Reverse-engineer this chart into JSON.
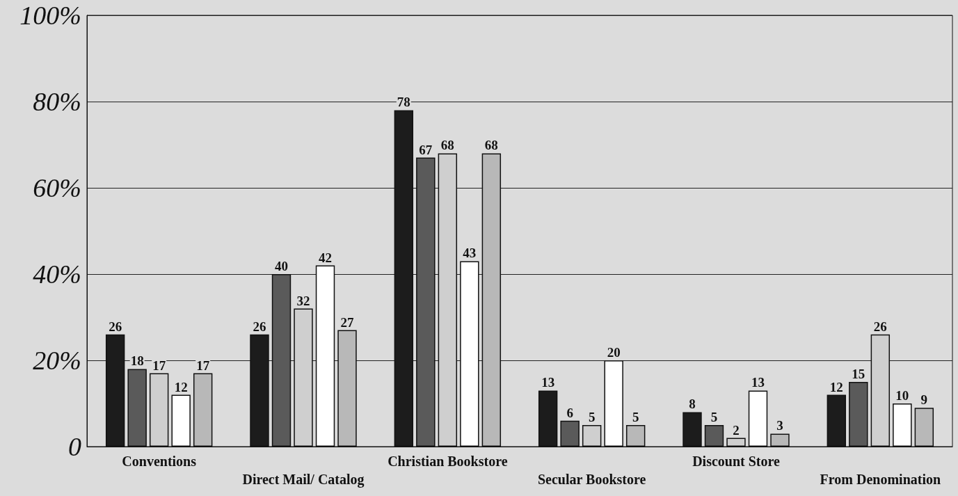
{
  "chart_data": {
    "type": "bar",
    "categories": [
      "Conventions",
      "Direct Mail/ Catalog",
      "Christian Bookstore",
      "Secular Bookstore",
      "Discount Store",
      "From Denomination"
    ],
    "series": [
      {
        "color": "#1c1c1c",
        "values": [
          26,
          26,
          78,
          13,
          8,
          12
        ]
      },
      {
        "color": "#5a5a5a",
        "values": [
          18,
          40,
          67,
          6,
          5,
          15
        ]
      },
      {
        "color": "#cfcfcf",
        "values": [
          17,
          32,
          68,
          5,
          2,
          26
        ]
      },
      {
        "color": "#ffffff",
        "values": [
          12,
          42,
          43,
          20,
          13,
          10
        ]
      },
      {
        "color": "#b8b8b8",
        "values": [
          17,
          27,
          68,
          5,
          3,
          9
        ]
      }
    ],
    "ylim": [
      0,
      100
    ],
    "yticks": [
      {
        "value": 0,
        "label": "0"
      },
      {
        "value": 20,
        "label": "20%"
      },
      {
        "value": 40,
        "label": "40%"
      },
      {
        "value": 60,
        "label": "60%"
      },
      {
        "value": 80,
        "label": "80%"
      },
      {
        "value": 100,
        "label": "100%"
      }
    ],
    "grid": "y",
    "data_labels": true
  }
}
